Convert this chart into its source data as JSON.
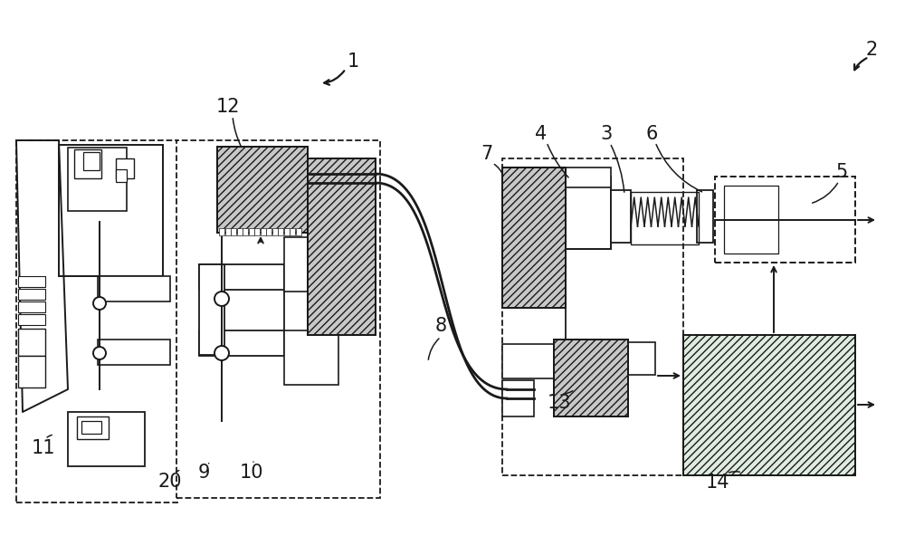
{
  "bg": "#ffffff",
  "lc": "#1a1a1a",
  "hatch_fc_dark": "#c8c8c8",
  "hatch_fc_light": "#e0ece0",
  "fig_w": 10.0,
  "fig_h": 6.13,
  "dpi": 100,
  "label_fs": 15
}
